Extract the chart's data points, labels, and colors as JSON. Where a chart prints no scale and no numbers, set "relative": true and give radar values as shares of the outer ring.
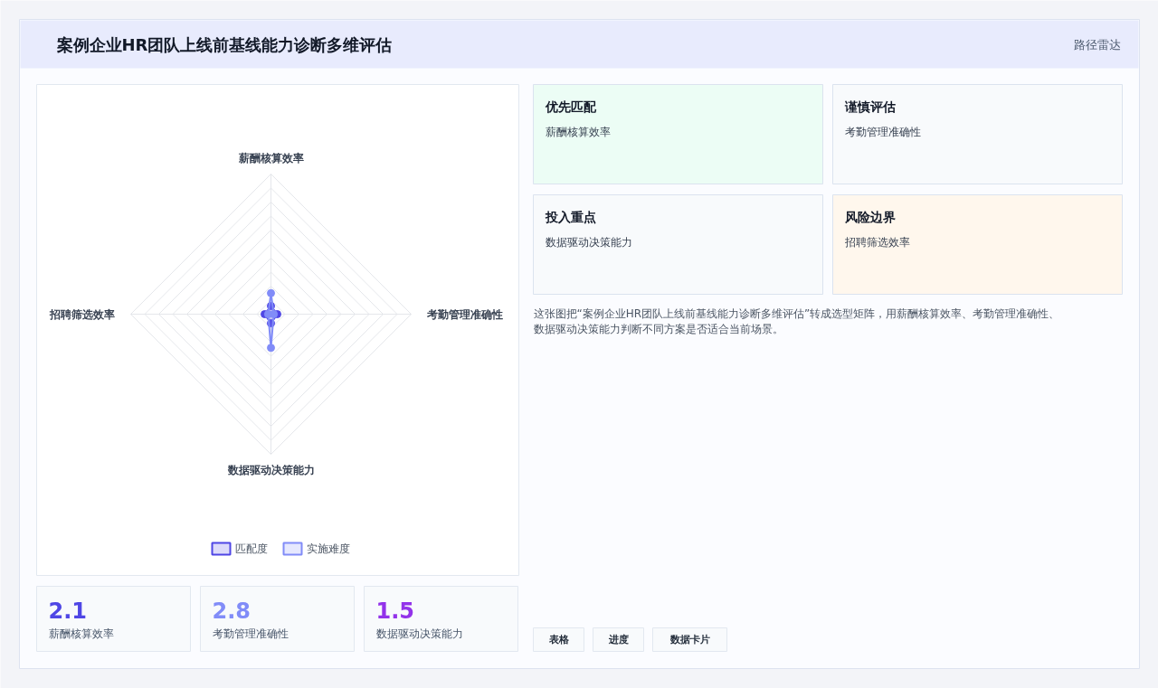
{
  "chart_data": [
    {
      "type": "radar",
      "title": "案例企业HR团队上线前基线能力诊断多维评估",
      "annotations": [
        "路径雷达"
      ],
      "relative": true,
      "grid": true,
      "legend": "bottom",
      "marker": "circle",
      "categories": [
        "薪酬核算效率",
        "考勤管理准确性",
        "数据驱动决策能力",
        "招聘筛选效率"
      ],
      "series": [
        {
          "name": "匹配度",
          "color": "#4f46e5",
          "values": [
            0.058,
            0.045,
            0.065,
            0.045
          ]
        },
        {
          "name": "实施难度",
          "color": "#818cf8",
          "values": [
            0.15,
            0.02,
            0.24,
            0.02
          ]
        }
      ]
    },
    {
      "type": "other",
      "categories": [
        "优先匹配",
        "谨慎评估",
        "投入重点",
        "风险边界"
      ],
      "colors": [
        "#ecfdf5",
        "#f8fafc",
        "#f8fafc",
        "#fff7ed"
      ],
      "annotations": [
        "薪酬核算效率",
        "考勤管理准确性",
        "数据驱动决策能力",
        "招聘筛选效率",
        "这张图把“案例企业HR团队上线前基线能力诊断多维评估”转成选型矩阵，用薪酬核算效率、考勤管理准确性、数据驱动决策能力判断不同方案是否适合当前场景。",
        "表格",
        "进度",
        "数据卡片"
      ]
    },
    {
      "type": "other",
      "categories": [
        "薪酬核算效率",
        "考勤管理准确性",
        "数据驱动决策能力"
      ],
      "annotations": [
        "2.1",
        "2.8",
        "1.5"
      ]
    }
  ]
}
